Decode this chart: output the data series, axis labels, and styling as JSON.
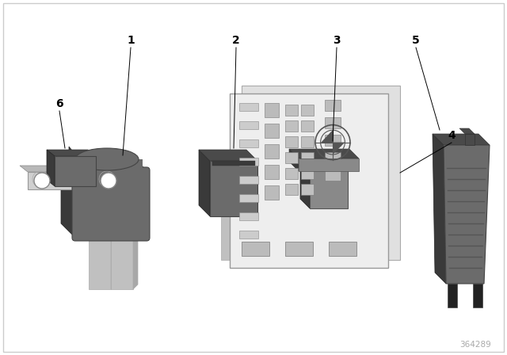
{
  "background_color": "#ffffff",
  "part_number": "364289",
  "dark_gray": "#6b6b6b",
  "darker_gray": "#4a4a4a",
  "darkest_gray": "#3a3a3a",
  "mid_gray": "#898989",
  "light_gray": "#c8c8c8",
  "silver": "#d0d0d0",
  "blade_color": "#c0c0c0",
  "blade_dark": "#aaaaaa"
}
